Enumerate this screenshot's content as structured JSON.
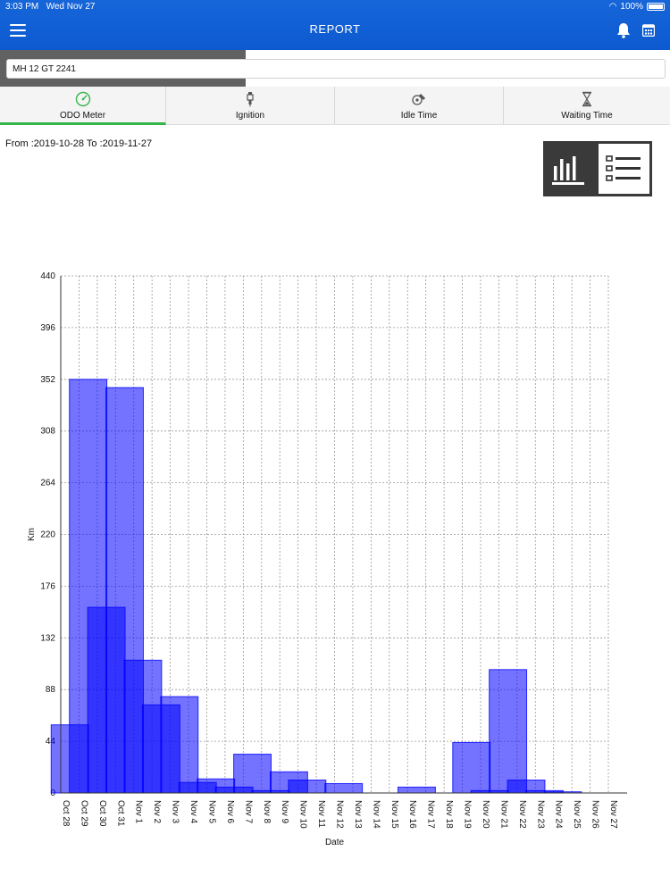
{
  "status": {
    "time": "3:03 PM",
    "date": "Wed Nov 27",
    "battery": "100%"
  },
  "header": {
    "title": "REPORT",
    "accent": "#1665d9"
  },
  "vehicle": {
    "value": "MH 12 GT 2241"
  },
  "tabs": [
    {
      "label": "ODO Meter",
      "icon": "speedometer-icon",
      "active": true
    },
    {
      "label": "Ignition",
      "icon": "spark-plug-icon",
      "active": false
    },
    {
      "label": "Idle Time",
      "icon": "engine-icon",
      "active": false
    },
    {
      "label": "Waiting Time",
      "icon": "hourglass-icon",
      "active": false
    }
  ],
  "range": {
    "text": "From :2019-10-28  To :2019-11-27"
  },
  "view_toggle": {
    "options": [
      "bar-chart-icon",
      "list-icon"
    ],
    "selected": "bar-chart-icon"
  },
  "chart_data": {
    "type": "bar",
    "xlabel": "Date",
    "ylabel": "Km",
    "ylim": [
      0,
      440
    ],
    "yticks": [
      0,
      44,
      88,
      132,
      176,
      220,
      264,
      308,
      352,
      396,
      440
    ],
    "grid": true,
    "bar_color": "#0000ff",
    "categories": [
      "Oct 28",
      "Oct 29",
      "Oct 30",
      "Oct 31",
      "Nov 1",
      "Nov 2",
      "Nov 3",
      "Nov 4",
      "Nov 5",
      "Nov 6",
      "Nov 7",
      "Nov 8",
      "Nov 9",
      "Nov 10",
      "Nov 11",
      "Nov 12",
      "Nov 13",
      "Nov 14",
      "Nov 15",
      "Nov 16",
      "Nov 17",
      "Nov 18",
      "Nov 19",
      "Nov 20",
      "Nov 21",
      "Nov 22",
      "Nov 23",
      "Nov 24",
      "Nov 25",
      "Nov 26",
      "Nov 27"
    ],
    "series": [
      {
        "values": [
          58,
          352,
          158,
          345,
          113,
          75,
          82,
          9,
          12,
          5,
          33,
          2,
          18,
          11,
          0,
          8,
          0,
          0,
          0,
          5,
          0,
          0,
          43,
          2,
          105,
          11,
          2,
          1,
          0,
          0,
          0
        ]
      }
    ]
  }
}
